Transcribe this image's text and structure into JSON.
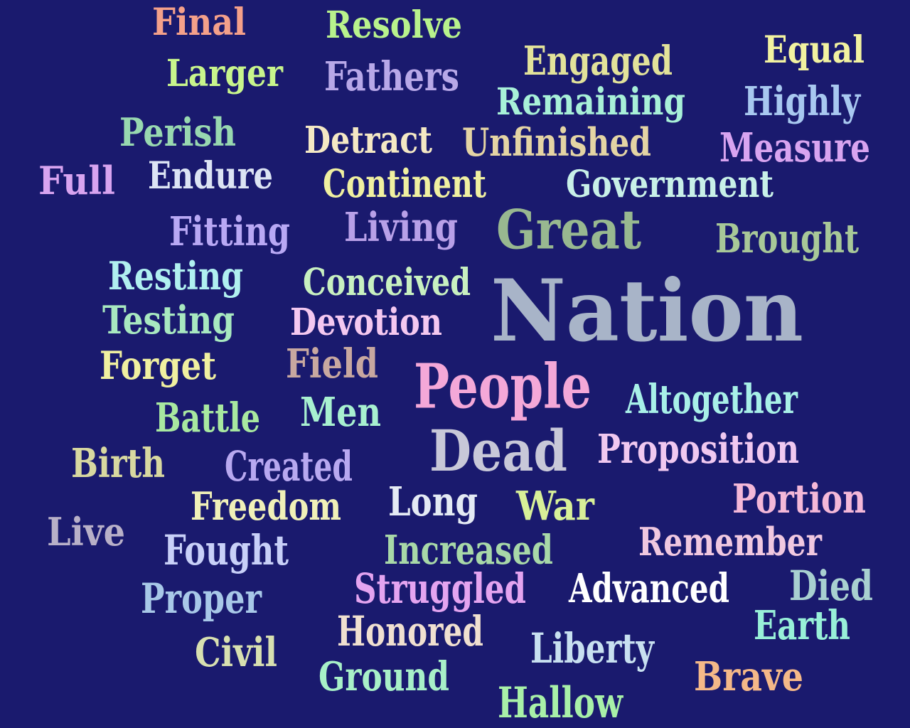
{
  "background": "#1a1a6e",
  "words": [
    {
      "id": "final",
      "text": "Final",
      "color": "#f4a08a"
    },
    {
      "id": "resolve",
      "text": "Resolve",
      "color": "#b8f28c"
    },
    {
      "id": "equal",
      "text": "Equal",
      "color": "#f2f2a0"
    },
    {
      "id": "larger",
      "text": "Larger",
      "color": "#c8f58c"
    },
    {
      "id": "fathers",
      "text": "Fathers",
      "color": "#b8a8e8"
    },
    {
      "id": "engaged",
      "text": "Engaged",
      "color": "#e2e29a"
    },
    {
      "id": "remaining",
      "text": "Remaining",
      "color": "#a8f0d8"
    },
    {
      "id": "highly",
      "text": "Highly",
      "color": "#a8c8f0"
    },
    {
      "id": "perish",
      "text": "Perish",
      "color": "#98d8b0"
    },
    {
      "id": "detract",
      "text": "Detract",
      "color": "#f4e8c4"
    },
    {
      "id": "unfinished",
      "text": "Unfinished",
      "color": "#e4d4a4"
    },
    {
      "id": "measure",
      "text": "Measure",
      "color": "#d8a4f0"
    },
    {
      "id": "full",
      "text": "Full",
      "color": "#d8a4f0"
    },
    {
      "id": "endure",
      "text": "Endure",
      "color": "#dce4f4"
    },
    {
      "id": "continent",
      "text": "Continent",
      "color": "#f0f0a0"
    },
    {
      "id": "government",
      "text": "Government",
      "color": "#c8f0e8"
    },
    {
      "id": "fitting",
      "text": "Fitting",
      "color": "#b8a8f4"
    },
    {
      "id": "living",
      "text": "Living",
      "color": "#b8a0e8"
    },
    {
      "id": "great",
      "text": "Great",
      "color": "#98b890"
    },
    {
      "id": "brought",
      "text": "Brought",
      "color": "#a8c898"
    },
    {
      "id": "resting",
      "text": "Resting",
      "color": "#b0f0f0"
    },
    {
      "id": "conceived",
      "text": "Conceived",
      "color": "#c8f0c0"
    },
    {
      "id": "nation",
      "text": "Nation",
      "color": "#a8b4c8"
    },
    {
      "id": "testing",
      "text": "Testing",
      "color": "#a8e8c0"
    },
    {
      "id": "devotion",
      "text": "Devotion",
      "color": "#f4c8f0"
    },
    {
      "id": "forget",
      "text": "Forget",
      "color": "#f0f0a0"
    },
    {
      "id": "field",
      "text": "Field",
      "color": "#c8a8a0"
    },
    {
      "id": "people",
      "text": "People",
      "color": "#f4a8d8"
    },
    {
      "id": "altogether",
      "text": "Altogether",
      "color": "#a8f0e8"
    },
    {
      "id": "battle",
      "text": "Battle",
      "color": "#a8e8a0"
    },
    {
      "id": "men",
      "text": "Men",
      "color": "#a8f0d0"
    },
    {
      "id": "dead",
      "text": "Dead",
      "color": "#c8c8d8"
    },
    {
      "id": "proposition",
      "text": "Proposition",
      "color": "#f0c8f0"
    },
    {
      "id": "birth",
      "text": "Birth",
      "color": "#d8d8a0"
    },
    {
      "id": "created",
      "text": "Created",
      "color": "#b8a8f0"
    },
    {
      "id": "portion",
      "text": "Portion",
      "color": "#f4b8d8"
    },
    {
      "id": "freedom",
      "text": "Freedom",
      "color": "#f0f0b8"
    },
    {
      "id": "long",
      "text": "Long",
      "color": "#e4eaf4"
    },
    {
      "id": "war",
      "text": "War",
      "color": "#d8f098"
    },
    {
      "id": "live",
      "text": "Live",
      "color": "#b8b0c8"
    },
    {
      "id": "remember",
      "text": "Remember",
      "color": "#f0c8e0"
    },
    {
      "id": "fought",
      "text": "Fought",
      "color": "#c8d0f8"
    },
    {
      "id": "increased",
      "text": "Increased",
      "color": "#a8d8a8"
    },
    {
      "id": "proper",
      "text": "Proper",
      "color": "#a8c8e8"
    },
    {
      "id": "struggled",
      "text": "Struggled",
      "color": "#e4a4f0"
    },
    {
      "id": "advanced",
      "text": "Advanced",
      "color": "#ffffff"
    },
    {
      "id": "died",
      "text": "Died",
      "color": "#a8d0d0"
    },
    {
      "id": "earth",
      "text": "Earth",
      "color": "#98f0d8"
    },
    {
      "id": "honored",
      "text": "Honored",
      "color": "#f0e0d0"
    },
    {
      "id": "civil",
      "text": "Civil",
      "color": "#d8e0b0"
    },
    {
      "id": "liberty",
      "text": "Liberty",
      "color": "#c8e0f0"
    },
    {
      "id": "ground",
      "text": "Ground",
      "color": "#a8f0c8"
    },
    {
      "id": "brave",
      "text": "Brave",
      "color": "#f4b888"
    },
    {
      "id": "hallow",
      "text": "Hallow",
      "color": "#a8f0a8"
    }
  ]
}
